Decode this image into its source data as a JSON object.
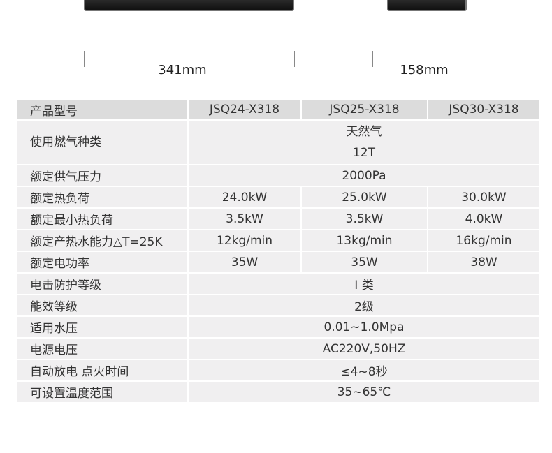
{
  "dimensions": {
    "width": "341mm",
    "depth": "158mm"
  },
  "table": {
    "header": {
      "label": "产品型号",
      "models": [
        "JSQ24-X318",
        "JSQ25-X318",
        "JSQ30-X318"
      ]
    },
    "rows": [
      {
        "label": "使用燃气种类",
        "value": [
          "天然气",
          "12T"
        ]
      },
      {
        "label": "额定供气压力",
        "value": "2000Pa"
      },
      {
        "label": "额定热负荷",
        "values": [
          "24.0kW",
          "25.0kW",
          "30.0kW"
        ]
      },
      {
        "label": "额定最小热负荷",
        "values": [
          "3.5kW",
          "3.5kW",
          "4.0kW"
        ]
      },
      {
        "label": "额定产热水能力△T=25K",
        "values": [
          "12kg/min",
          "13kg/min",
          "16kg/min"
        ]
      },
      {
        "label": "额定电功率",
        "values": [
          "35W",
          "35W",
          "38W"
        ]
      },
      {
        "label": "电击防护等级",
        "value": "I 类"
      },
      {
        "label": "能效等级",
        "value": "2级"
      },
      {
        "label": "适用水压",
        "value": "0.01~1.0Mpa"
      },
      {
        "label": "电源电压",
        "value": "AC220V,50HZ"
      },
      {
        "label": "自动放电 点火时间",
        "value": "≤4~8秒"
      },
      {
        "label": "可设置温度范围",
        "value": "35~65℃"
      }
    ]
  }
}
